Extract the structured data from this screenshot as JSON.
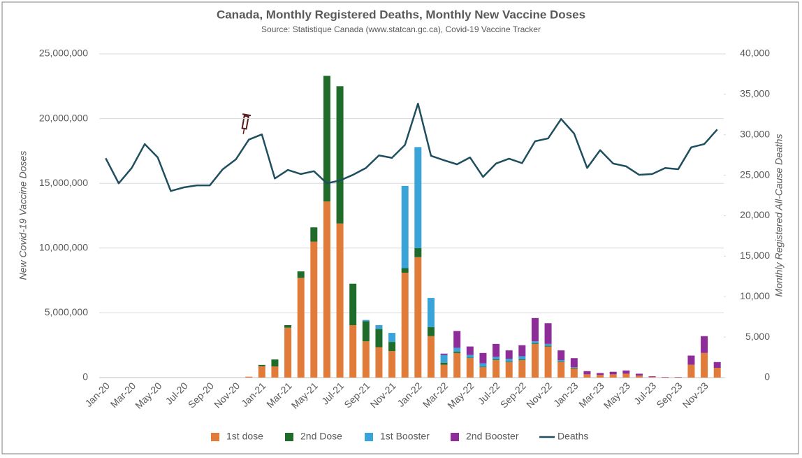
{
  "chart_data": {
    "type": "bar_line",
    "title": "Canada, Monthly Registered Deaths, Monthly New Vaccine Doses",
    "subtitle": "Source: Statistique Canada (www.statcan.gc.ca), Covid-19 Vaccine Tracker",
    "ylabel": "New Covid-19 Vaccine Doses",
    "y2label": "Monthly Registered All-Cause Deaths",
    "categories": [
      "Jan-20",
      null,
      "Mar-20",
      null,
      "May-20",
      null,
      "Jul-20",
      null,
      "Sep-20",
      null,
      "Nov-20",
      null,
      "Jan-21",
      null,
      "Mar-21",
      null,
      "May-21",
      null,
      "Jul-21",
      null,
      "Sep-21",
      null,
      "Nov-21",
      null,
      "Jan-22",
      null,
      "Mar-22",
      null,
      "May-22",
      null,
      "Jul-22",
      null,
      "Sep-22",
      null,
      "Nov-22",
      null,
      "Jan-23",
      null,
      "Mar-23",
      null,
      "May-23",
      null,
      "Jul-23",
      null,
      "Sep-23",
      null,
      "Nov-23",
      null
    ],
    "ylim": [
      0,
      25000000
    ],
    "yticks": [
      0,
      {
        "value": 5000000,
        "label": "5,000,000"
      },
      {
        "value": 10000000,
        "label": "10,000,000"
      },
      {
        "value": 15000000,
        "label": "15,000,000"
      },
      {
        "value": 20000000,
        "label": "20,000,000"
      },
      {
        "value": 25000000,
        "label": "25,000,000"
      }
    ],
    "y2lim": [
      0,
      40000
    ],
    "y2ticks": [
      0,
      {
        "value": 5000,
        "label": "5,000"
      },
      {
        "value": 10000,
        "label": "10,000"
      },
      {
        "value": 15000,
        "label": "15,000"
      },
      {
        "value": 20000,
        "label": "20,000"
      },
      {
        "value": 25000,
        "label": "25,000"
      },
      {
        "value": 30000,
        "label": "30,000"
      },
      {
        "value": 35000,
        "label": "35,000"
      },
      {
        "value": 40000,
        "label": "40,000"
      }
    ],
    "grid": true,
    "legend": "bottom",
    "series": [
      {
        "name": "1st dose",
        "color": "#e07b39",
        "kind": "bar",
        "values": [
          0,
          0,
          0,
          0,
          0,
          0,
          0,
          0,
          0,
          0,
          0,
          70000,
          880000,
          860000,
          3850000,
          7700000,
          10500000,
          13600000,
          11900000,
          4050000,
          2800000,
          2350000,
          2050000,
          8100000,
          9300000,
          3200000,
          1000000,
          1900000,
          1500000,
          800000,
          1350000,
          1200000,
          1350000,
          2600000,
          2400000,
          1200000,
          700000,
          250000,
          200000,
          250000,
          300000,
          150000,
          50000,
          30000,
          30000,
          1000000,
          1900000,
          750000
        ]
      },
      {
        "name": "2nd Dose",
        "color": "#1e6b2a",
        "kind": "bar",
        "values": [
          0,
          0,
          0,
          0,
          0,
          0,
          0,
          0,
          0,
          0,
          0,
          0,
          100000,
          540000,
          200000,
          500000,
          1100000,
          9700000,
          10600000,
          3200000,
          1550000,
          1400000,
          700000,
          350000,
          700000,
          700000,
          150000,
          100000,
          50000,
          50000,
          50000,
          50000,
          50000,
          50000,
          50000,
          50000,
          50000,
          0,
          0,
          0,
          0,
          0,
          0,
          0,
          0,
          0,
          0,
          0
        ]
      },
      {
        "name": "1st Booster",
        "color": "#3aa3d8",
        "kind": "bar",
        "values": [
          0,
          0,
          0,
          0,
          0,
          0,
          0,
          0,
          0,
          0,
          0,
          0,
          0,
          0,
          0,
          0,
          0,
          0,
          0,
          0,
          100000,
          300000,
          700000,
          6350000,
          7800000,
          2250000,
          600000,
          300000,
          200000,
          250000,
          200000,
          200000,
          250000,
          150000,
          150000,
          100000,
          50000,
          0,
          0,
          0,
          0,
          0,
          0,
          0,
          0,
          0,
          0,
          0
        ]
      },
      {
        "name": "2nd Booster",
        "color": "#8e2c9a",
        "kind": "bar",
        "values": [
          0,
          0,
          0,
          0,
          0,
          0,
          0,
          0,
          0,
          0,
          0,
          0,
          0,
          0,
          0,
          0,
          0,
          0,
          0,
          0,
          0,
          0,
          0,
          0,
          0,
          0,
          100000,
          1300000,
          650000,
          800000,
          1000000,
          650000,
          850000,
          1800000,
          1600000,
          750000,
          700000,
          250000,
          150000,
          200000,
          250000,
          150000,
          50000,
          20000,
          20000,
          700000,
          1300000,
          450000
        ]
      },
      {
        "name": "Deaths",
        "color": "#1f4e5f",
        "kind": "line",
        "axis": "y2",
        "values": [
          27100,
          24000,
          25900,
          28850,
          27200,
          23050,
          23500,
          23750,
          23750,
          25750,
          26950,
          29400,
          30050,
          24600,
          25650,
          25150,
          25500,
          24000,
          24350,
          25050,
          25900,
          27450,
          27150,
          28750,
          33850,
          27400,
          26850,
          26350,
          27200,
          24800,
          26450,
          27050,
          26500,
          29200,
          29550,
          31950,
          30150,
          25900,
          28100,
          26450,
          26100,
          25050,
          25150,
          25900,
          25750,
          28450,
          28850,
          30650
        ]
      }
    ]
  }
}
